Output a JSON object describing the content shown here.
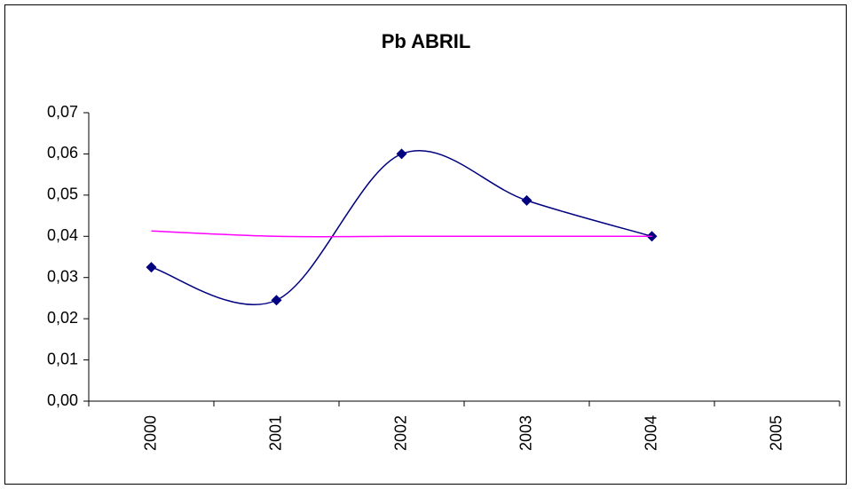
{
  "chart_data": {
    "type": "line",
    "title": "Pb ABRIL",
    "categories": [
      "2000",
      "2001",
      "2002",
      "2003",
      "2004",
      "2005"
    ],
    "series": [
      {
        "color": "#000080",
        "marker": "diamond",
        "smooth": true,
        "values": [
          0.0325,
          0.0245,
          0.06,
          0.0487,
          0.04,
          null
        ]
      },
      {
        "color": "#ff00ff",
        "marker": "none",
        "smooth": true,
        "values": [
          0.0413,
          0.04,
          0.04,
          0.04,
          0.04,
          null
        ]
      }
    ],
    "ylim": [
      0,
      0.07
    ],
    "yticks": [
      {
        "value": 0,
        "label": "0,00"
      },
      {
        "value": 0.01,
        "label": "0,01"
      },
      {
        "value": 0.02,
        "label": "0,02"
      },
      {
        "value": 0.03,
        "label": "0,03"
      },
      {
        "value": 0.04,
        "label": "0,04"
      },
      {
        "value": 0.05,
        "label": "0,05"
      },
      {
        "value": 0.06,
        "label": "0,06"
      },
      {
        "value": 0.07,
        "label": "0,07"
      }
    ],
    "grid": false
  }
}
